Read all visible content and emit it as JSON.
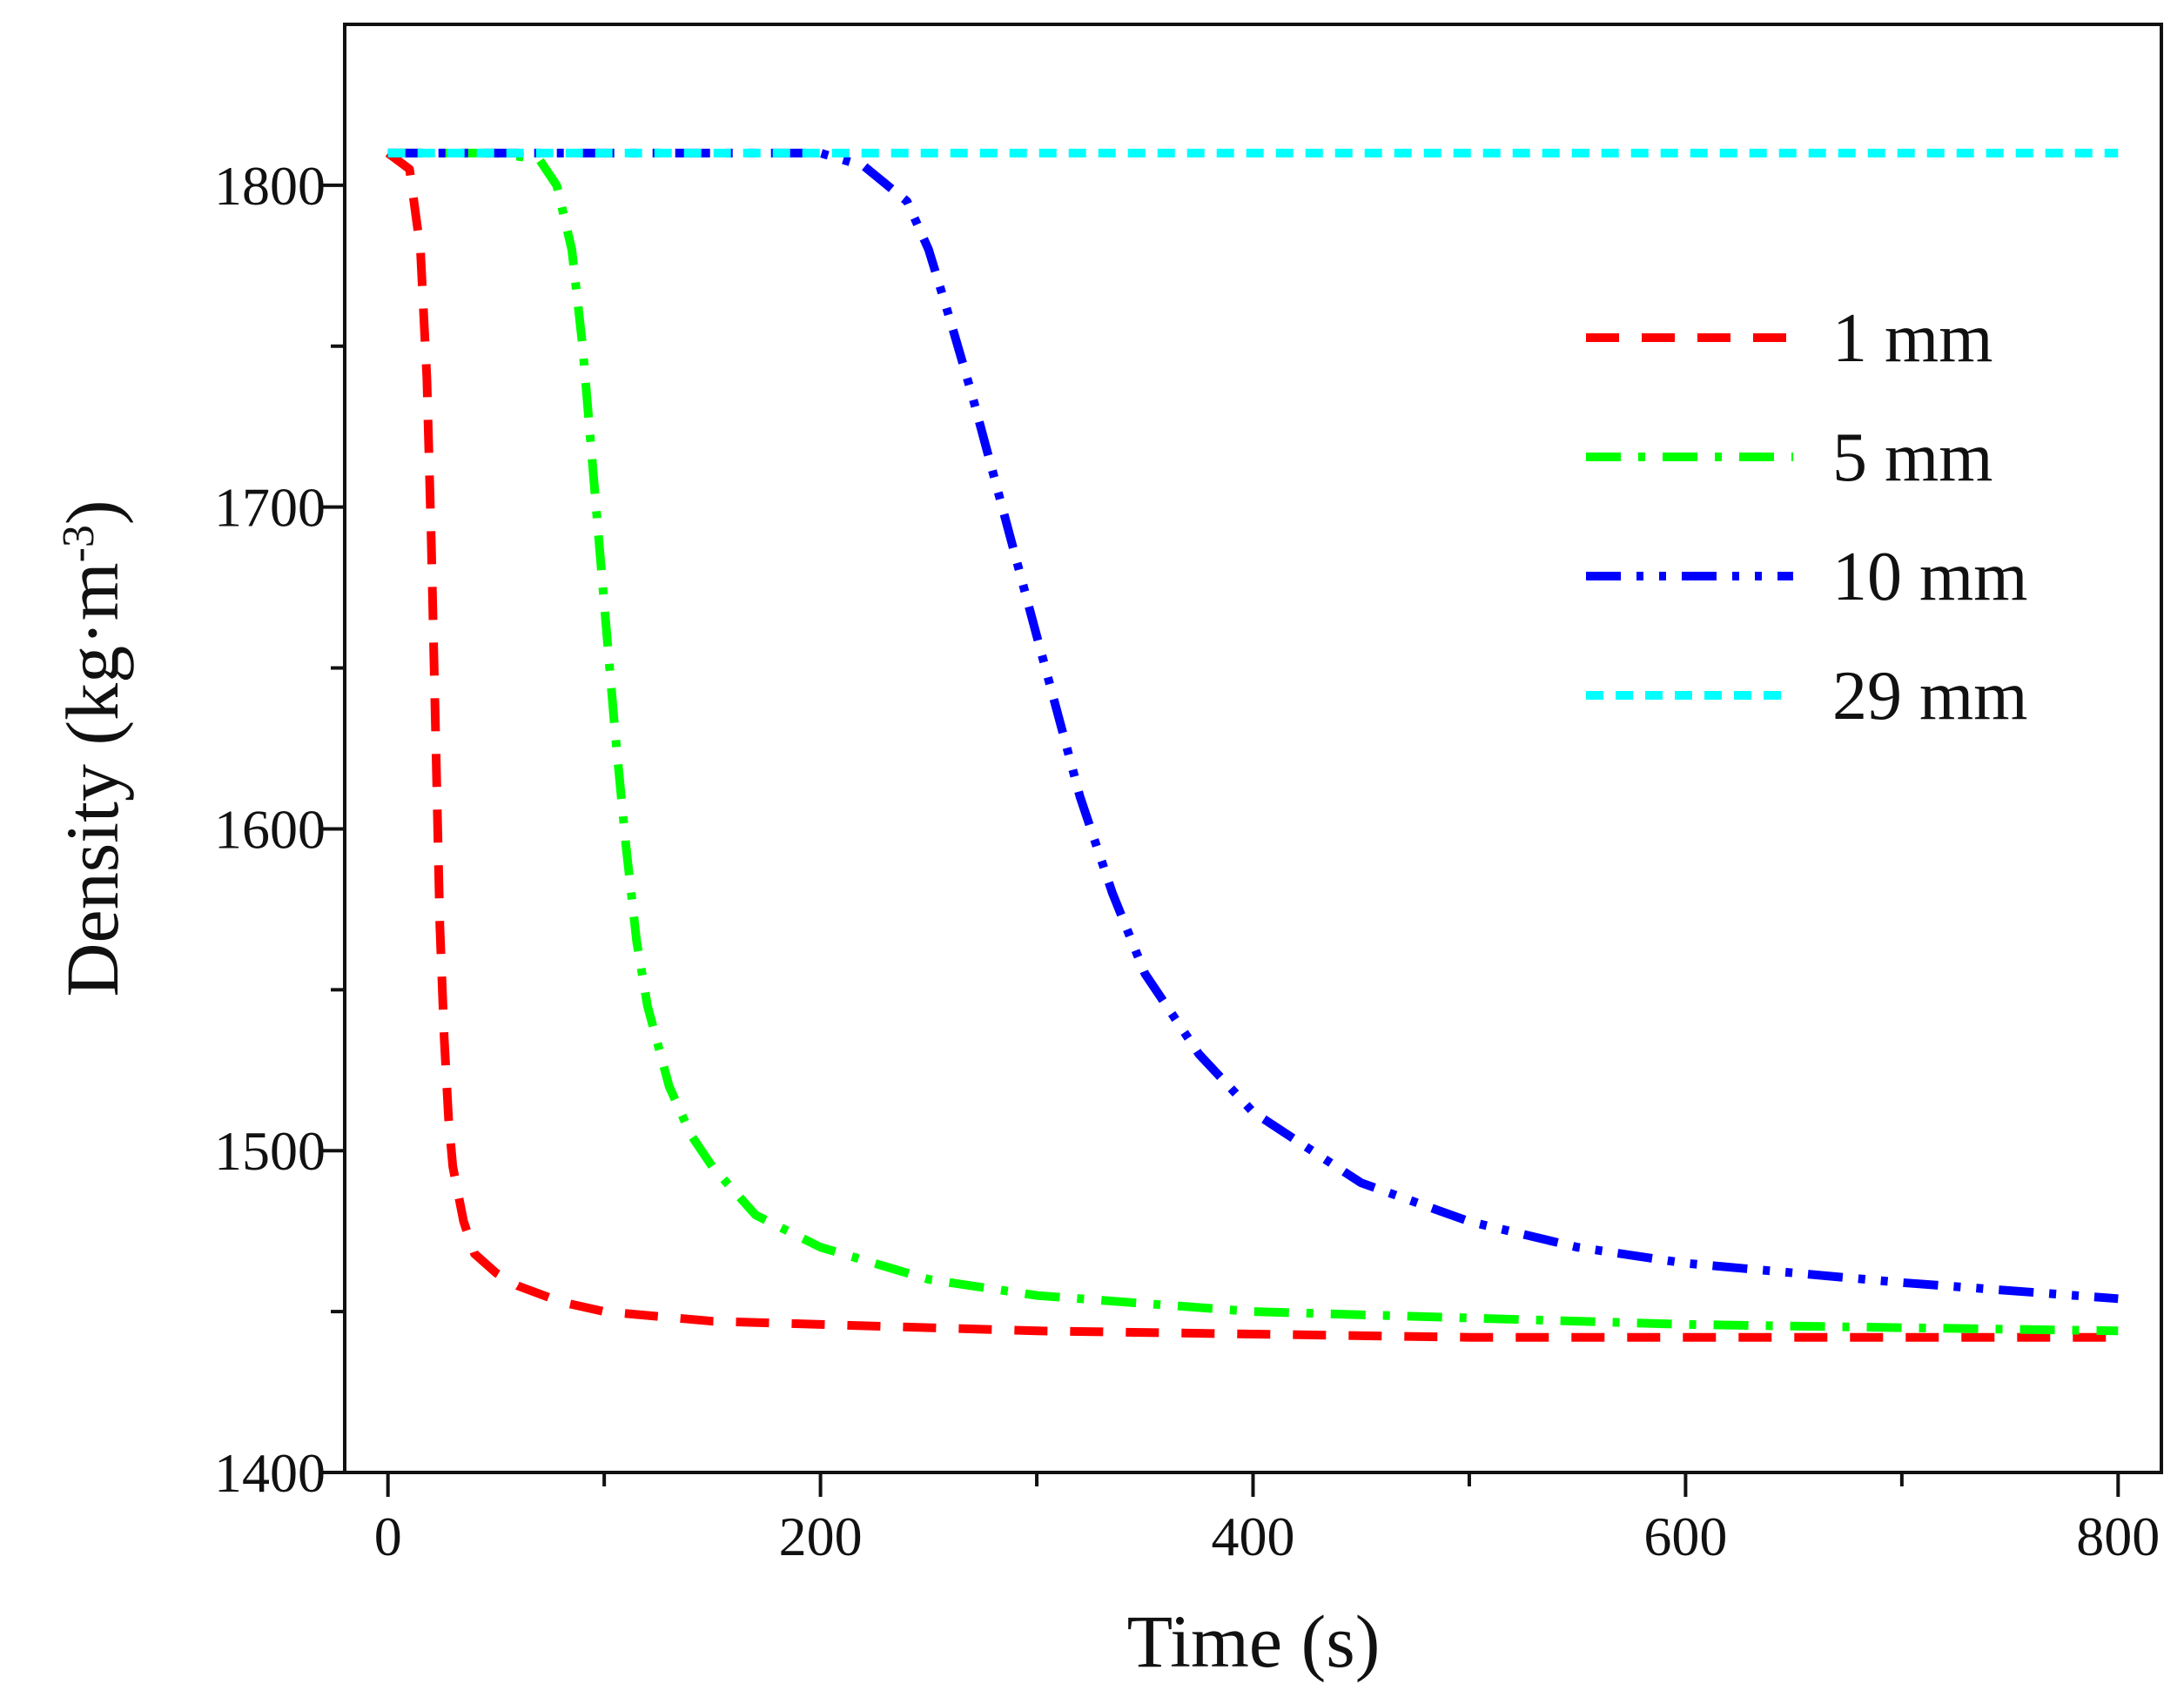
{
  "chart_data": {
    "type": "line",
    "title": "",
    "xlabel": "Time (s)",
    "ylabel_main": "Density (kg·m",
    "ylabel_sup": "-3",
    "ylabel_close": ")",
    "xlim": [
      -20,
      820
    ],
    "ylim": [
      1400,
      1850
    ],
    "xticks": [
      0,
      200,
      400,
      600,
      800
    ],
    "xtick_labels": [
      "0",
      "200",
      "400",
      "600",
      "800"
    ],
    "xminor": [
      100,
      300,
      500,
      700
    ],
    "yticks": [
      1400,
      1500,
      1600,
      1700,
      1800
    ],
    "ytick_labels": [
      "1400",
      "1500",
      "1600",
      "1700",
      "1800"
    ],
    "yminor": [
      1450,
      1550,
      1650,
      1750
    ],
    "legend_position": "top-right",
    "series": [
      {
        "name": "1 mm",
        "color": "#ff0000",
        "dash": "dashed",
        "x": [
          0,
          10,
          15,
          18,
          20,
          22,
          24,
          26,
          28,
          30,
          35,
          40,
          50,
          60,
          80,
          100,
          150,
          200,
          300,
          400,
          500,
          600,
          700,
          800
        ],
        "y": [
          1810,
          1805,
          1780,
          1740,
          1690,
          1630,
          1570,
          1535,
          1510,
          1495,
          1478,
          1468,
          1462,
          1458,
          1453,
          1450,
          1447,
          1446,
          1444,
          1443,
          1442,
          1442,
          1442,
          1442
        ]
      },
      {
        "name": "5 mm",
        "color": "#00ff00",
        "dash": "dashdot",
        "x": [
          0,
          50,
          70,
          78,
          85,
          90,
          95,
          100,
          105,
          110,
          115,
          120,
          130,
          140,
          150,
          170,
          200,
          250,
          300,
          400,
          500,
          600,
          700,
          800
        ],
        "y": [
          1810,
          1810,
          1808,
          1800,
          1780,
          1750,
          1710,
          1670,
          1630,
          1595,
          1565,
          1545,
          1520,
          1505,
          1495,
          1480,
          1470,
          1460,
          1455,
          1450,
          1448,
          1446,
          1445,
          1444
        ]
      },
      {
        "name": "10 mm",
        "color": "#0000ff",
        "dash": "dashdotdot",
        "x": [
          0,
          200,
          220,
          240,
          250,
          260,
          270,
          280,
          290,
          300,
          310,
          320,
          335,
          350,
          375,
          400,
          450,
          500,
          550,
          600,
          700,
          800
        ],
        "y": [
          1810,
          1810,
          1806,
          1795,
          1780,
          1758,
          1735,
          1710,
          1685,
          1660,
          1635,
          1610,
          1580,
          1555,
          1530,
          1512,
          1490,
          1478,
          1470,
          1465,
          1459,
          1454
        ]
      },
      {
        "name": "29 mm",
        "color": "#00ffff",
        "dash": "shortdash",
        "x": [
          0,
          800
        ],
        "y": [
          1810,
          1810
        ]
      }
    ]
  }
}
